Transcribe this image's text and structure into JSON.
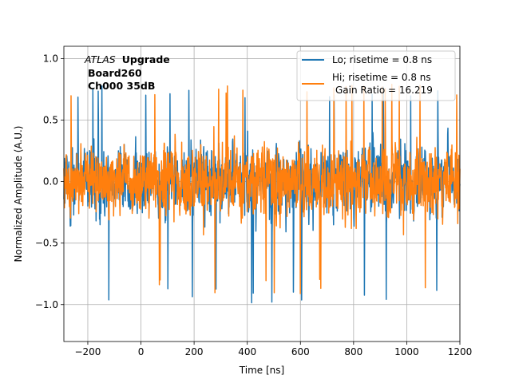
{
  "chart_data": {
    "type": "line",
    "title": "",
    "xlabel": "Time [ns]",
    "ylabel": "Normalized Amplitude (A.U.)",
    "xlim": [
      -290,
      1200
    ],
    "ylim": [
      -1.3,
      1.1
    ],
    "xticks": [
      -200,
      0,
      200,
      400,
      600,
      800,
      1000,
      1200
    ],
    "xtick_labels": [
      "−200",
      "0",
      "200",
      "400",
      "600",
      "800",
      "1000",
      "1200"
    ],
    "yticks": [
      -1.0,
      -0.5,
      0.0,
      0.5,
      1.0
    ],
    "ytick_labels": [
      "−1.0",
      "−0.5",
      "0.0",
      "0.5",
      "1.0"
    ],
    "grid": true,
    "legend_position": "top-right",
    "annotation": {
      "atlas": "ATLAS",
      "upgrade": "Upgrade",
      "board": "Board260",
      "channel": "Ch000 35dB"
    },
    "series": [
      {
        "name": "Lo; risetime = 0.8 ns",
        "color": "#1f77b4",
        "x_start": -290,
        "x_end": 1200,
        "n_points": 1490,
        "signal": "noise",
        "amplitude_core": 0.45,
        "amplitude_extremes": [
          -1.0,
          0.8
        ]
      },
      {
        "name": "Hi; risetime = 0.8 ns",
        "name_line2": "Gain Ratio = 16.219",
        "color": "#ff7f0e",
        "x_start": -290,
        "x_end": 1200,
        "n_points": 1490,
        "signal": "noise",
        "amplitude_core": 0.45,
        "amplitude_extremes": [
          -0.93,
          0.8
        ]
      }
    ]
  }
}
